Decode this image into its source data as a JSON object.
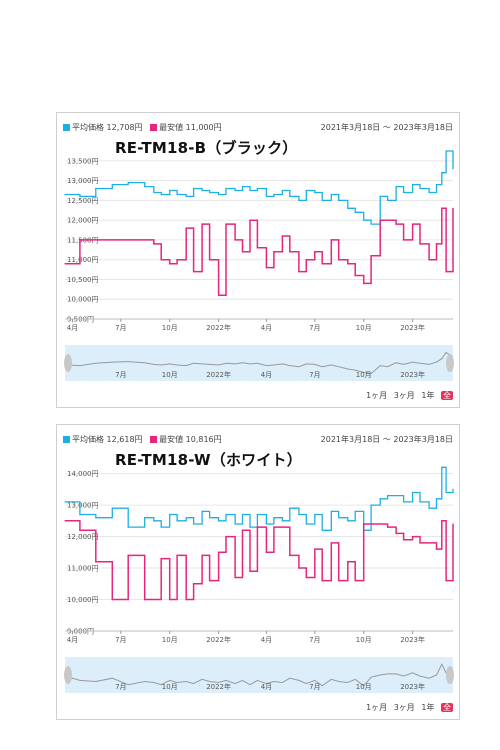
{
  "colors": {
    "average": "#1eaee6",
    "lowest": "#e8257e",
    "grid": "#e6e6e6",
    "navigator_bg": "#dbeefa"
  },
  "zoom_buttons": [
    "1ヶ月",
    "3ヶ月",
    "1年",
    "全"
  ],
  "chart_data": [
    {
      "type": "line",
      "title": "RE-TM18-B（ブラック）",
      "legend": [
        "平均価格 12,708円",
        "最安値 11,000円"
      ],
      "date_range": "2021年3月18日 ～ 2023年3月18日",
      "x_ticks": [
        "4月",
        "7月",
        "10月",
        "2022年",
        "4月",
        "7月",
        "10月",
        "2023年"
      ],
      "navigator_ticks": [
        "7月",
        "10月",
        "2022年",
        "4月",
        "7月",
        "10月",
        "2023年"
      ],
      "y_ticks": [
        "9,500円",
        "10,000円",
        "10,500円",
        "11,000円",
        "11,500円",
        "12,000円",
        "12,500円",
        "13,000円",
        "13,500円"
      ],
      "ylim": [
        9500,
        13800
      ],
      "x": [
        "2021-03-18",
        "2021-04-15",
        "2021-05-15",
        "2021-06-15",
        "2021-07-15",
        "2021-08-15",
        "2021-09-01",
        "2021-09-15",
        "2021-10-01",
        "2021-10-15",
        "2021-11-01",
        "2021-11-15",
        "2021-12-01",
        "2021-12-15",
        "2022-01-01",
        "2022-01-15",
        "2022-02-01",
        "2022-02-15",
        "2022-03-01",
        "2022-03-15",
        "2022-04-01",
        "2022-04-15",
        "2022-05-01",
        "2022-05-15",
        "2022-06-01",
        "2022-06-15",
        "2022-07-01",
        "2022-07-15",
        "2022-08-01",
        "2022-08-15",
        "2022-09-01",
        "2022-09-15",
        "2022-10-01",
        "2022-10-15",
        "2022-11-01",
        "2022-11-15",
        "2022-12-01",
        "2022-12-15",
        "2023-01-01",
        "2023-01-15",
        "2023-02-01",
        "2023-02-15",
        "2023-02-25",
        "2023-03-05",
        "2023-03-18"
      ],
      "series": [
        {
          "name": "平均価格",
          "color": "#1eaee6",
          "values": [
            12650,
            12600,
            12800,
            12900,
            12950,
            12850,
            12700,
            12650,
            12750,
            12650,
            12600,
            12800,
            12750,
            12700,
            12650,
            12800,
            12750,
            12850,
            12750,
            12800,
            12600,
            12650,
            12750,
            12600,
            12500,
            12750,
            12700,
            12500,
            12650,
            12500,
            12300,
            12200,
            12000,
            11900,
            12600,
            12500,
            12850,
            12700,
            12900,
            12800,
            12700,
            12900,
            13200,
            13750,
            13300
          ]
        },
        {
          "name": "最安値",
          "color": "#e8257e",
          "values": [
            10900,
            11500,
            11500,
            11500,
            11500,
            11500,
            11400,
            11000,
            10900,
            11000,
            11800,
            10700,
            11900,
            11000,
            10100,
            11900,
            11500,
            11200,
            12000,
            11300,
            10800,
            11200,
            11600,
            11200,
            10700,
            11000,
            11200,
            10900,
            11500,
            11000,
            10900,
            10600,
            10400,
            11100,
            12000,
            12000,
            11900,
            11500,
            11900,
            11400,
            11000,
            11400,
            12300,
            10700,
            12300
          ]
        }
      ]
    },
    {
      "type": "line",
      "title": "RE-TM18-W（ホワイト）",
      "legend": [
        "平均価格 12,618円",
        "最安値 10,816円"
      ],
      "date_range": "2021年3月18日 ～ 2023年3月18日",
      "x_ticks": [
        "4月",
        "7月",
        "10月",
        "2022年",
        "4月",
        "7月",
        "10月",
        "2023年"
      ],
      "navigator_ticks": [
        "7月",
        "10月",
        "2022年",
        "4月",
        "7月",
        "10月",
        "2023年"
      ],
      "y_ticks": [
        "9,000円",
        "10,000円",
        "11,000円",
        "12,000円",
        "13,000円",
        "14,000円"
      ],
      "ylim": [
        9000,
        14400
      ],
      "x": [
        "2021-03-18",
        "2021-04-15",
        "2021-05-15",
        "2021-06-15",
        "2021-07-15",
        "2021-08-15",
        "2021-09-01",
        "2021-09-15",
        "2021-10-01",
        "2021-10-15",
        "2021-11-01",
        "2021-11-15",
        "2021-12-01",
        "2021-12-15",
        "2022-01-01",
        "2022-01-15",
        "2022-02-01",
        "2022-02-15",
        "2022-03-01",
        "2022-03-15",
        "2022-04-01",
        "2022-04-15",
        "2022-05-01",
        "2022-05-15",
        "2022-06-01",
        "2022-06-15",
        "2022-07-01",
        "2022-07-15",
        "2022-08-01",
        "2022-08-15",
        "2022-09-01",
        "2022-09-15",
        "2022-10-01",
        "2022-10-15",
        "2022-11-01",
        "2022-11-15",
        "2022-12-01",
        "2022-12-15",
        "2023-01-01",
        "2023-01-15",
        "2023-02-01",
        "2023-02-15",
        "2023-02-25",
        "2023-03-05",
        "2023-03-18"
      ],
      "series": [
        {
          "name": "平均価格",
          "color": "#1eaee6",
          "values": [
            13100,
            12700,
            12600,
            12900,
            12300,
            12600,
            12500,
            12300,
            12700,
            12500,
            12600,
            12400,
            12800,
            12600,
            12500,
            12700,
            12400,
            12700,
            12300,
            12700,
            12400,
            12600,
            12500,
            12900,
            12700,
            12400,
            12700,
            12200,
            12800,
            12600,
            12500,
            12800,
            12200,
            13000,
            13200,
            13300,
            13300,
            13100,
            13400,
            13100,
            12900,
            13200,
            14200,
            13400,
            13500
          ]
        },
        {
          "name": "最安値",
          "color": "#e8257e",
          "values": [
            12500,
            12200,
            11200,
            10000,
            11400,
            10000,
            10000,
            11300,
            10000,
            11400,
            10000,
            10500,
            11400,
            10600,
            11500,
            12000,
            10700,
            12200,
            10900,
            12300,
            11500,
            12300,
            12300,
            11400,
            11000,
            10700,
            11600,
            10600,
            11800,
            10600,
            11200,
            10600,
            12400,
            12400,
            12400,
            12300,
            12100,
            11900,
            12000,
            11800,
            11800,
            11600,
            12500,
            10600,
            12400
          ]
        }
      ]
    }
  ]
}
